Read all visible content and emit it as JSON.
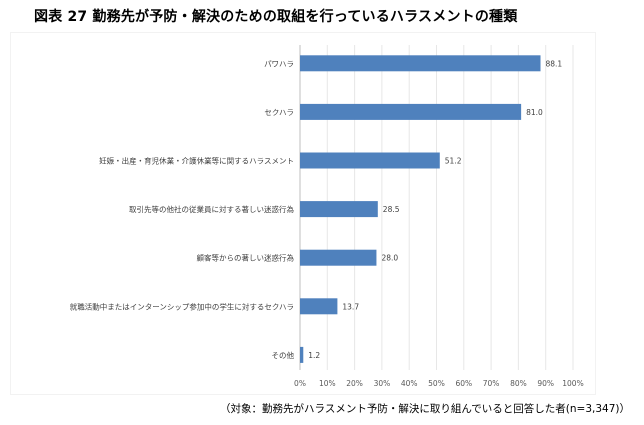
{
  "title": "図表 27 勤務先が予防・解決のための取組を行っているハラスメントの種類",
  "footnote": "（対象：勤務先がハラスメント予防・解決に取り組んでいると回答した者(n=3,347)）",
  "colors": {
    "bar": "#4f81bd",
    "gridline": "#e7e7e7",
    "axis": "#bfbfbf",
    "text": "#595959"
  },
  "chart_data": {
    "type": "bar",
    "orientation": "horizontal",
    "categories": [
      "パワハラ",
      "セクハラ",
      "妊娠・出産・育児休業・介護休業等に関するハラスメント",
      "取引先等の他社の従業員に対する著しい迷惑行為",
      "顧客等からの著しい迷惑行為",
      "就職活動中またはインターンシップ参加中の学生に対するセクハラ",
      "その他"
    ],
    "values": [
      88.1,
      81.0,
      51.2,
      28.5,
      28.0,
      13.7,
      1.2
    ],
    "value_labels": [
      "88.1",
      "81.0",
      "51.2",
      "28.5",
      "28.0",
      "13.7",
      "1.2"
    ],
    "xlim": [
      0,
      100
    ],
    "x_ticks": [
      "0%",
      "10%",
      "20%",
      "30%",
      "40%",
      "50%",
      "60%",
      "70%",
      "80%",
      "90%",
      "100%"
    ],
    "grid": true,
    "legend": "none"
  }
}
